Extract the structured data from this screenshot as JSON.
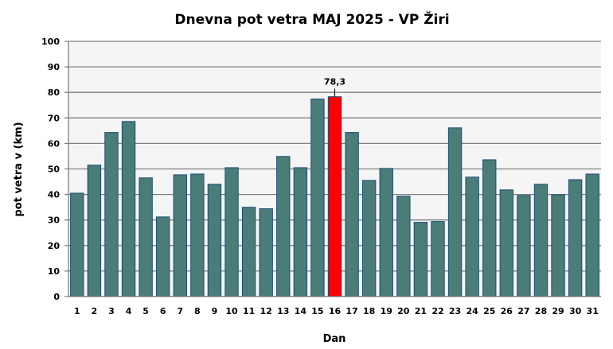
{
  "chart_data": {
    "type": "bar",
    "title": "Dnevna pot vetra MAJ 2025 - VP Žiri",
    "xlabel": "Dan",
    "ylabel": "pot vetra  v (km)",
    "ylim": [
      0,
      100
    ],
    "yticks": [
      0,
      10,
      20,
      30,
      40,
      50,
      60,
      70,
      80,
      90,
      100
    ],
    "grid": true,
    "categories": [
      "1",
      "2",
      "3",
      "4",
      "5",
      "6",
      "7",
      "8",
      "9",
      "10",
      "11",
      "12",
      "13",
      "14",
      "15",
      "16",
      "17",
      "18",
      "19",
      "20",
      "21",
      "22",
      "23",
      "24",
      "25",
      "26",
      "27",
      "28",
      "29",
      "30",
      "31"
    ],
    "values": [
      40.5,
      51.5,
      64.3,
      68.6,
      46.5,
      31.2,
      47.7,
      48.0,
      44.0,
      50.5,
      35.0,
      34.4,
      54.9,
      50.5,
      77.4,
      78.3,
      64.3,
      45.5,
      50.2,
      39.3,
      29.1,
      29.4,
      66.1,
      46.8,
      53.6,
      41.8,
      39.6,
      44.0,
      39.9,
      45.8,
      48.0
    ],
    "highlight_index": 15,
    "highlight_label": "78,3",
    "colors": {
      "bar": "#4a7c78",
      "bar_border": "#1f4e79",
      "highlight": "#ff0000",
      "plot_bg": "#f5f5f5",
      "grid": "#808080"
    }
  }
}
